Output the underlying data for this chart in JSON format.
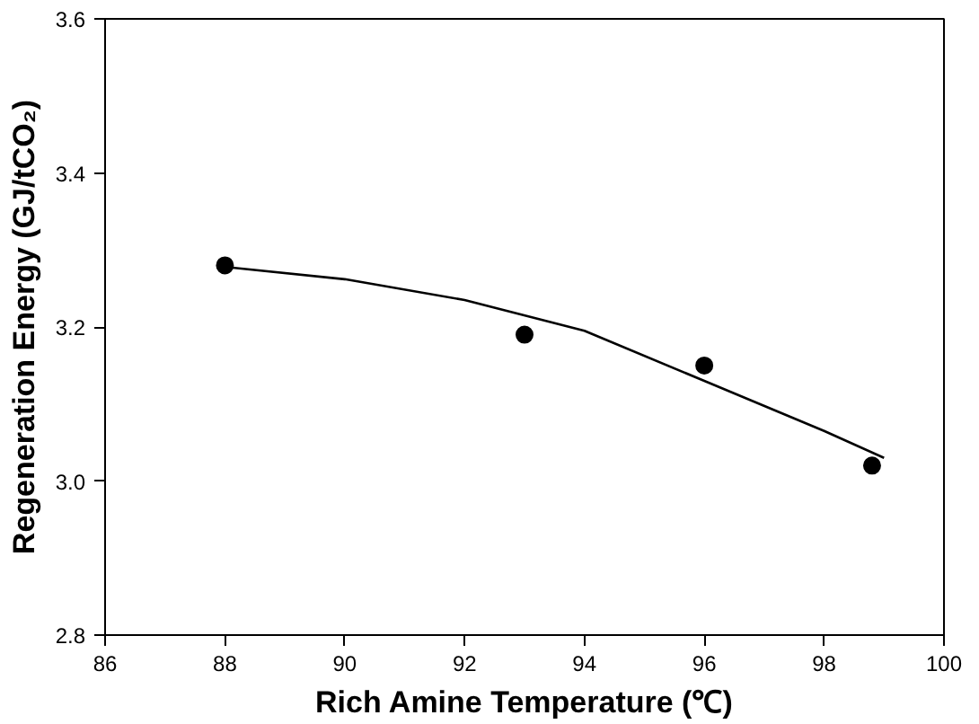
{
  "chart_data": {
    "type": "scatter",
    "xlabel": "Rich Amine Temperature (℃)",
    "ylabel": "Regeneration Energy (GJ/tCO₂)",
    "xlim": [
      86,
      100
    ],
    "ylim": [
      2.8,
      3.6
    ],
    "xticks": [
      86,
      88,
      90,
      92,
      94,
      96,
      98,
      100
    ],
    "yticks": [
      2.8,
      {
        "value": 3.0,
        "label": "3.0"
      },
      3.2,
      3.4,
      3.6
    ],
    "grid": false,
    "series": [
      {
        "color": "#000000",
        "marker": "circle",
        "x": [
          88,
          93,
          96,
          98.8
        ],
        "values": [
          3.28,
          3.19,
          3.15,
          3.02
        ]
      },
      {
        "type": "line",
        "color": "#000000",
        "marker": "none",
        "line_style": "solid",
        "x": [
          88,
          90,
          92,
          94,
          96,
          98,
          99
        ],
        "values": [
          3.278,
          3.262,
          3.235,
          3.195,
          3.13,
          3.065,
          3.03
        ]
      }
    ]
  }
}
